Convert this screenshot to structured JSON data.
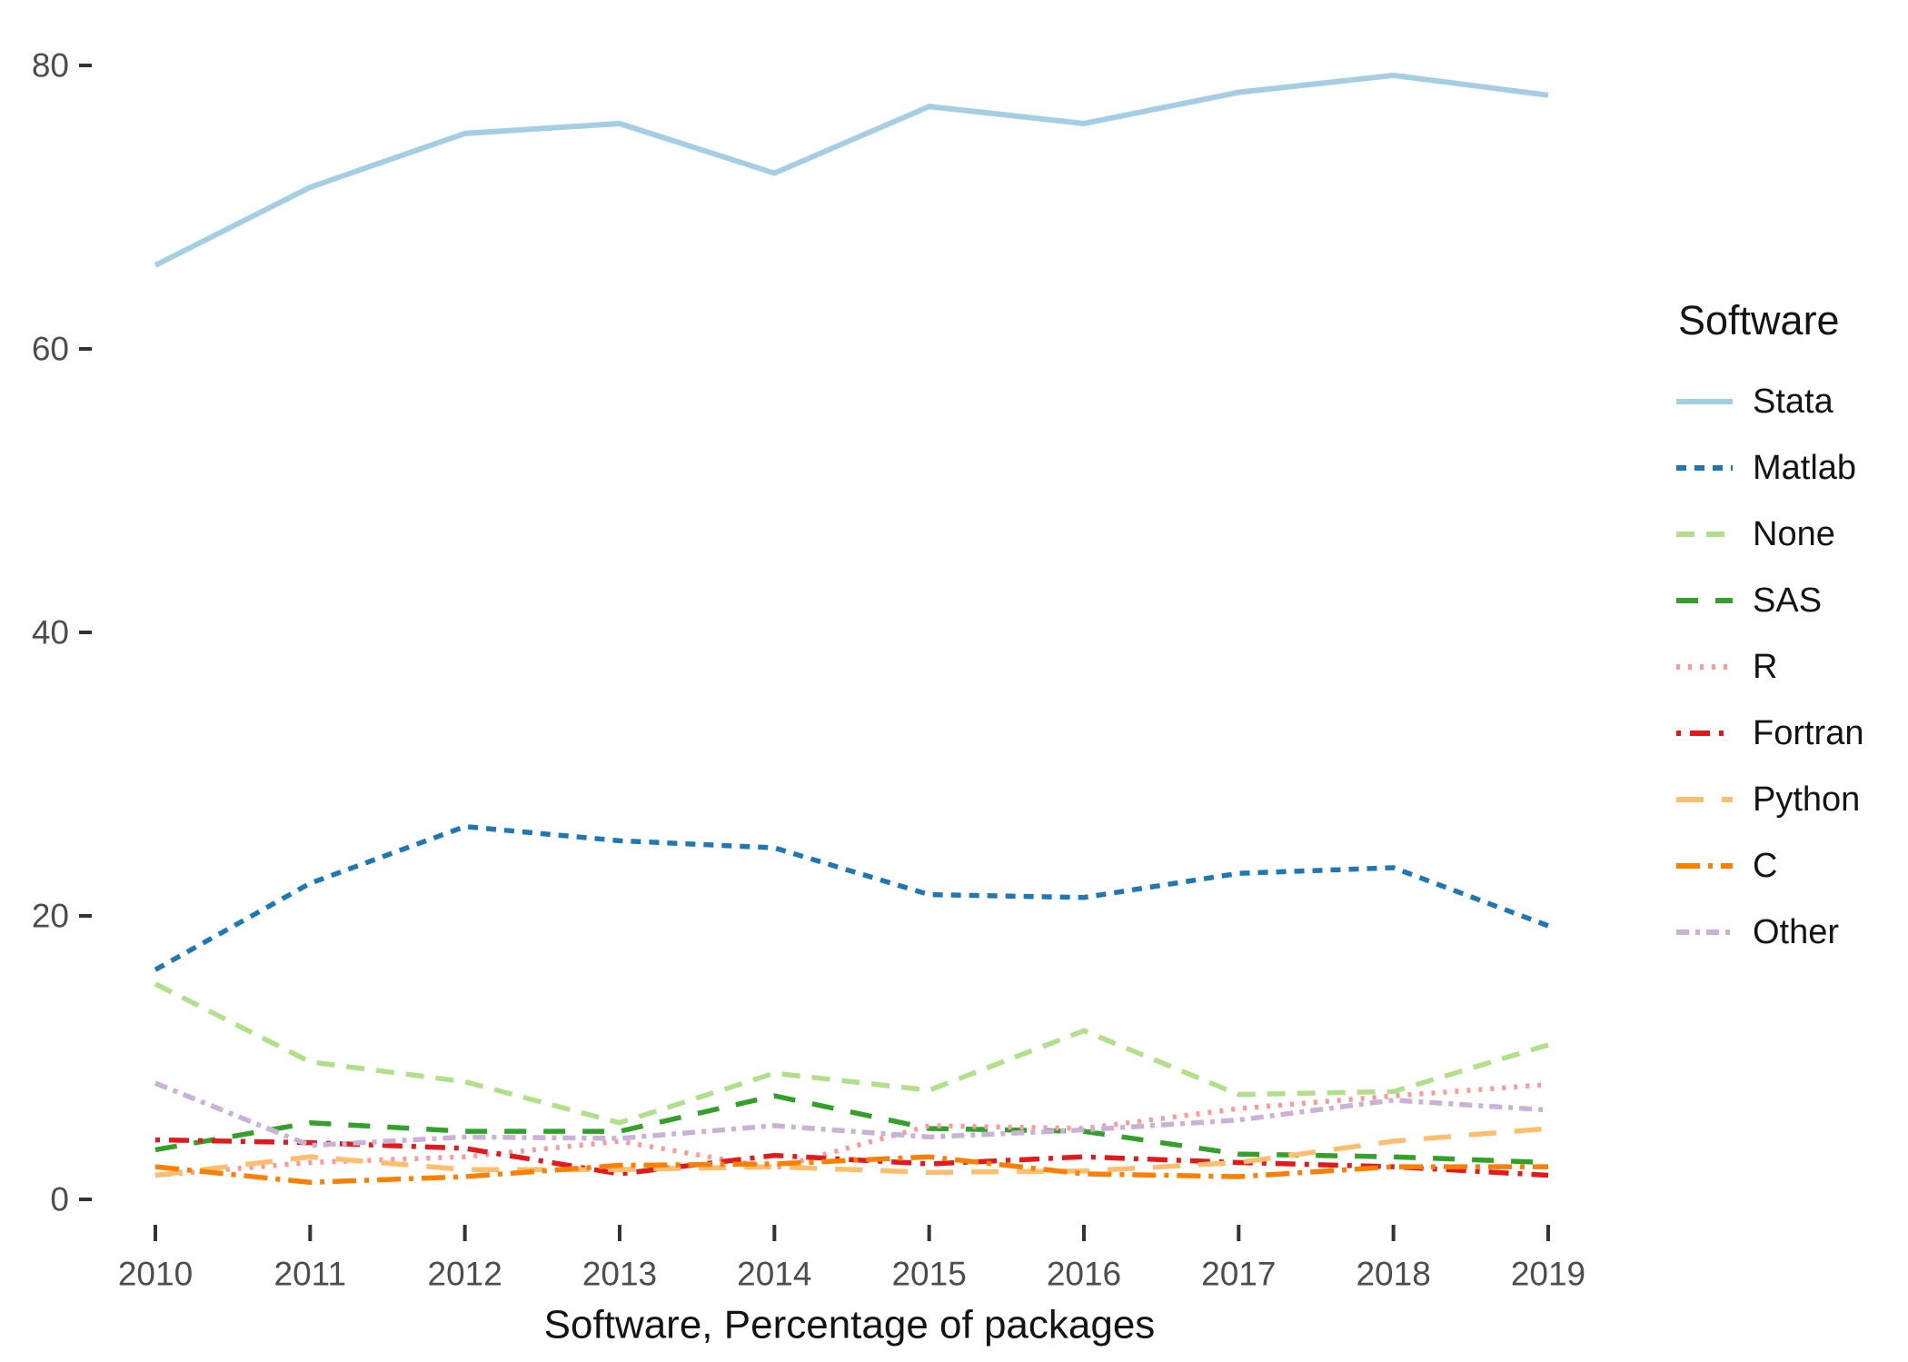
{
  "chart_data": {
    "type": "line",
    "title": "",
    "xlabel": "Software, Percentage of packages",
    "ylabel": "",
    "legend_title": "Software",
    "legend_position": "right",
    "grid": false,
    "x": [
      2010,
      2011,
      2012,
      2013,
      2014,
      2015,
      2016,
      2017,
      2018,
      2019
    ],
    "x_tick_labels": [
      "2010",
      "2011",
      "2012",
      "2013",
      "2014",
      "2015",
      "2016",
      "2017",
      "2018",
      "2019"
    ],
    "y_ticks": [
      0,
      20,
      40,
      60,
      80
    ],
    "y_tick_labels": [
      "0",
      "20",
      "40",
      "60",
      "80"
    ],
    "ylim": [
      0,
      82
    ],
    "series": [
      {
        "name": "Stata",
        "color": "#a6cee3",
        "linetype": "solid",
        "values": [
          65.9,
          71.4,
          75.2,
          75.9,
          72.4,
          77.1,
          75.9,
          78.1,
          79.3,
          77.9
        ]
      },
      {
        "name": "Matlab",
        "color": "#1f78b4",
        "linetype": "shortdash",
        "values": [
          16.2,
          22.3,
          26.3,
          25.3,
          24.8,
          21.5,
          21.3,
          23.0,
          23.4,
          19.3
        ]
      },
      {
        "name": "None",
        "color": "#b2df8a",
        "linetype": "dash",
        "values": [
          15.2,
          9.7,
          8.3,
          5.4,
          8.9,
          7.7,
          11.9,
          7.4,
          7.6,
          10.9
        ]
      },
      {
        "name": "SAS",
        "color": "#33a02c",
        "linetype": "longdash2",
        "values": [
          3.5,
          5.4,
          4.8,
          4.8,
          7.3,
          5.0,
          4.8,
          3.2,
          3.0,
          2.6
        ]
      },
      {
        "name": "R",
        "color": "#fb9a99",
        "linetype": "dotted",
        "values": [
          1.7,
          2.6,
          3.0,
          4.1,
          2.2,
          5.2,
          5.0,
          6.4,
          7.3,
          8.1
        ]
      },
      {
        "name": "Fortran",
        "color": "#e31a1c",
        "linetype": "dashdot",
        "values": [
          4.2,
          4.0,
          3.6,
          1.8,
          3.1,
          2.5,
          3.0,
          2.6,
          2.3,
          1.7
        ]
      },
      {
        "name": "Python",
        "color": "#fdbf6f",
        "linetype": "longdash",
        "values": [
          1.7,
          3.0,
          2.1,
          2.1,
          2.3,
          1.9,
          2.0,
          2.6,
          4.1,
          5.0
        ]
      },
      {
        "name": "C",
        "color": "#ff7f00",
        "linetype": "dashdotlong",
        "values": [
          2.3,
          1.2,
          1.6,
          2.4,
          2.5,
          3.0,
          1.8,
          1.6,
          2.3,
          2.3
        ]
      },
      {
        "name": "Other",
        "color": "#cab2d6",
        "linetype": "dashdotdot",
        "values": [
          8.2,
          3.8,
          4.4,
          4.3,
          5.2,
          4.4,
          4.9,
          5.6,
          7.0,
          6.3
        ]
      }
    ]
  }
}
